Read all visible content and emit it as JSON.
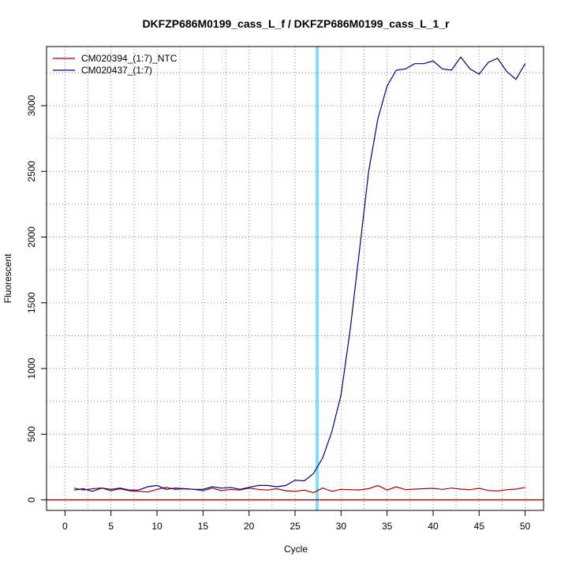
{
  "chart_data": {
    "type": "line",
    "title": "DKFZP686M0199_cass_L_f / DKFZP686M0199_cass_L_1_r",
    "xlabel": "Cycle",
    "ylabel": "Fluorescent",
    "xlim": [
      -2,
      52
    ],
    "ylim": [
      -80,
      3450
    ],
    "x_ticks": [
      0,
      5,
      10,
      15,
      20,
      25,
      30,
      35,
      40,
      45,
      50
    ],
    "y_ticks": [
      0,
      500,
      1000,
      1500,
      2000,
      2500,
      3000
    ],
    "grid": true,
    "legend_position": "top-left",
    "threshold_cycle": 27.4,
    "threshold_line_color": "#00bfff",
    "baseline_value": 0,
    "baseline_color": "#cc0000",
    "x": [
      1,
      2,
      3,
      4,
      5,
      6,
      7,
      8,
      9,
      10,
      11,
      12,
      13,
      14,
      15,
      16,
      17,
      18,
      19,
      20,
      21,
      22,
      23,
      24,
      25,
      26,
      27,
      28,
      29,
      30,
      31,
      32,
      33,
      34,
      35,
      36,
      37,
      38,
      39,
      40,
      41,
      42,
      43,
      44,
      45,
      46,
      47,
      48,
      49,
      50
    ],
    "series": [
      {
        "name": "CM020394_(1:7)_NTC",
        "color": "#aa0000",
        "values": [
          90,
          75,
          85,
          90,
          70,
          85,
          70,
          65,
          60,
          80,
          95,
          80,
          85,
          80,
          70,
          90,
          70,
          80,
          75,
          90,
          80,
          75,
          85,
          70,
          65,
          75,
          55,
          90,
          65,
          80,
          78,
          76,
          85,
          110,
          75,
          100,
          78,
          82,
          85,
          88,
          80,
          90,
          82,
          78,
          88,
          72,
          68,
          78,
          82,
          95
        ]
      },
      {
        "name": "CM020437_(1:7)",
        "color": "#00007f",
        "values": [
          75,
          85,
          65,
          90,
          80,
          90,
          75,
          75,
          100,
          110,
          80,
          90,
          85,
          80,
          80,
          100,
          90,
          95,
          80,
          95,
          110,
          110,
          100,
          110,
          150,
          145,
          200,
          320,
          520,
          800,
          1300,
          1900,
          2500,
          2900,
          3150,
          3270,
          3280,
          3320,
          3320,
          3340,
          3280,
          3270,
          3370,
          3280,
          3240,
          3330,
          3360,
          3260,
          3200,
          3320
        ]
      }
    ]
  }
}
